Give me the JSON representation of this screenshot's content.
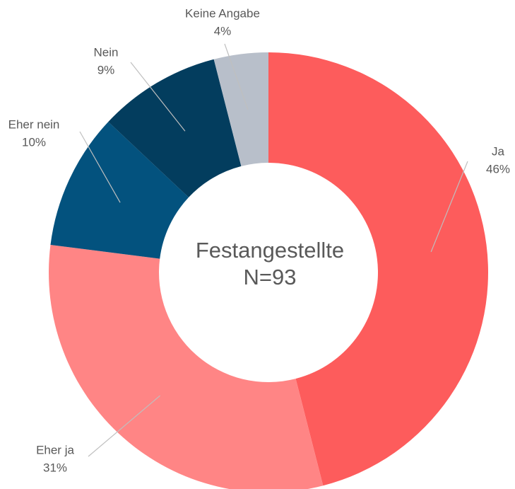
{
  "chart_data": {
    "type": "donut",
    "center_label": [
      "Festangestellte",
      "N=93"
    ],
    "categories": [
      "Ja",
      "Eher ja",
      "Eher nein",
      "Nein",
      "Keine Angabe"
    ],
    "values": [
      46,
      31,
      10,
      9,
      4
    ],
    "value_labels": [
      "46%",
      "31%",
      "10%",
      "9%",
      "4%"
    ],
    "colors": [
      "#fd5c5c",
      "#ff8585",
      "#03527e",
      "#033d5e",
      "#b8bfca"
    ]
  }
}
